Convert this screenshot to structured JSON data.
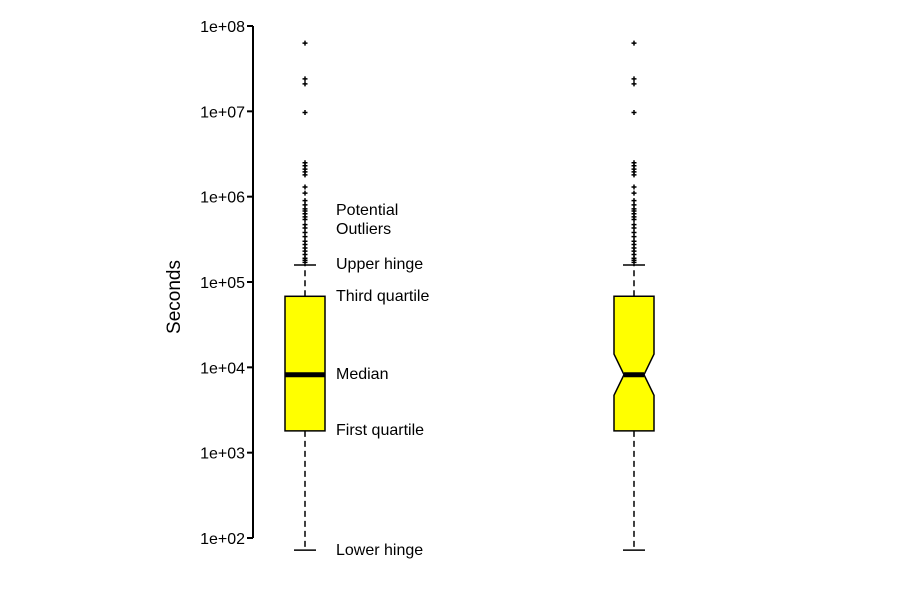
{
  "chart_data": {
    "type": "box",
    "ylabel": "Seconds",
    "yscale": "log10",
    "ylim": [
      100,
      100000000
    ],
    "yticks": [
      {
        "value": 100,
        "label": "1e+02"
      },
      {
        "value": 1000,
        "label": "1e+03"
      },
      {
        "value": 10000,
        "label": "1e+04"
      },
      {
        "value": 100000,
        "label": "1e+05"
      },
      {
        "value": 1000000,
        "label": "1e+06"
      },
      {
        "value": 10000000,
        "label": "1e+07"
      },
      {
        "value": 100000000,
        "label": "1e+08"
      }
    ],
    "box_color": "#ffff00",
    "boxes": [
      {
        "notched": false,
        "lower_whisker": 72,
        "q1": 1800,
        "median": 8200,
        "q3": 68000,
        "upper_whisker": 158000,
        "outliers": [
          63000000,
          24000000,
          21000000,
          9700000,
          2500000,
          2300000,
          2100000,
          1950000,
          1800000,
          1300000,
          1100000,
          900000,
          800000,
          720000,
          680000,
          630000,
          580000,
          540000,
          470000,
          430000,
          380000,
          340000,
          300000,
          275000,
          250000,
          230000,
          210000,
          190000,
          180000,
          170000
        ]
      },
      {
        "notched": true,
        "lower_whisker": 72,
        "q1": 1800,
        "notch_low": 4700,
        "median": 8200,
        "notch_high": 14300,
        "q3": 68000,
        "upper_whisker": 158000,
        "outliers": [
          63000000,
          24000000,
          21000000,
          9700000,
          2500000,
          2300000,
          2100000,
          1950000,
          1800000,
          1300000,
          1100000,
          900000,
          800000,
          720000,
          680000,
          630000,
          580000,
          540000,
          470000,
          430000,
          380000,
          340000,
          300000,
          275000,
          250000,
          230000,
          210000,
          190000,
          180000,
          170000
        ]
      }
    ],
    "annotations": {
      "outliers_line1": "Potential",
      "outliers_line2": "Outliers",
      "upper_hinge": "Upper hinge",
      "third_quartile": "Third quartile",
      "median": "Median",
      "first_quartile": "First quartile",
      "lower_hinge": "Lower hinge"
    }
  }
}
